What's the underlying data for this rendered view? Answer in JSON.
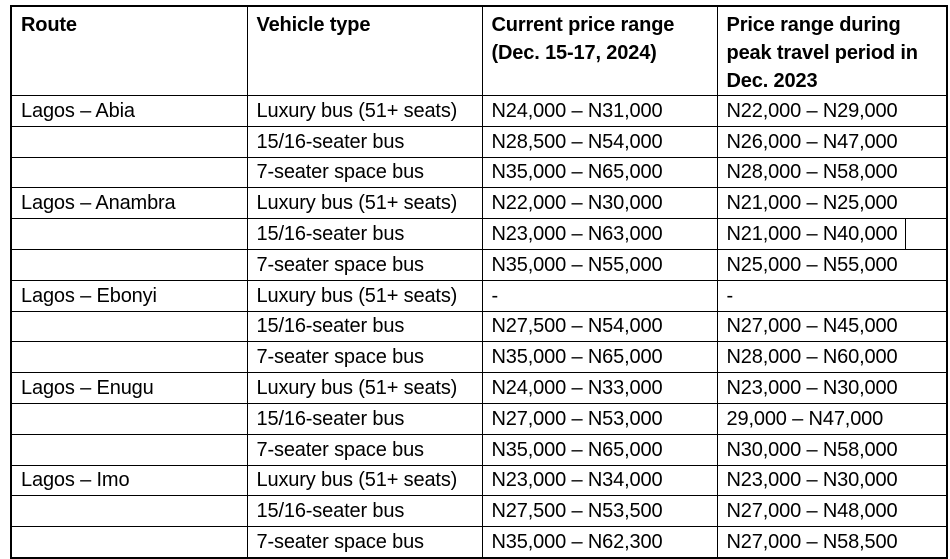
{
  "colors": {
    "background": "#ffffff",
    "border": "#000000",
    "text": "#000000"
  },
  "table": {
    "columns": [
      {
        "key": "route",
        "label": "Route"
      },
      {
        "key": "vehicle",
        "label": "Vehicle type"
      },
      {
        "key": "current",
        "label": "Current price range (Dec. 15-17, 2024)"
      },
      {
        "key": "peak",
        "label": "Price range during peak travel period in Dec. 2023"
      }
    ],
    "rows": [
      {
        "route": "Lagos – Abia",
        "vehicle": "Luxury bus (51+ seats)",
        "current": "N24,000 – N31,000",
        "peak": "N22,000 – N29,000"
      },
      {
        "route": "",
        "vehicle": "15/16-seater bus",
        "current": "N28,500 – N54,000",
        "peak": "N26,000 – N47,000"
      },
      {
        "route": "",
        "vehicle": "7-seater space bus",
        "current": "N35,000 – N65,000",
        "peak": "N28,000 – N58,000"
      },
      {
        "route": "Lagos – Anambra",
        "vehicle": "Luxury bus (51+ seats)",
        "current": "N22,000 – N30,000",
        "peak": "N21,000 – N25,000"
      },
      {
        "route": "",
        "vehicle": "15/16-seater bus",
        "current": "N23,000 – N63,000",
        "peak": "N21,000 – N40,000"
      },
      {
        "route": "",
        "vehicle": "7-seater space bus",
        "current": "N35,000 – N55,000",
        "peak": "N25,000 – N55,000"
      },
      {
        "route": "Lagos – Ebonyi",
        "vehicle": "Luxury bus (51+ seats)",
        "current": "-",
        "peak": "-"
      },
      {
        "route": "",
        "vehicle": "15/16-seater bus",
        "current": "N27,500 – N54,000",
        "peak": "N27,000 – N45,000"
      },
      {
        "route": "",
        "vehicle": "7-seater space bus",
        "current": "N35,000 – N65,000",
        "peak": "N28,000 – N60,000"
      },
      {
        "route": "Lagos – Enugu",
        "vehicle": "Luxury bus (51+ seats)",
        "current": "N24,000 – N33,000",
        "peak": "N23,000 – N30,000"
      },
      {
        "route": "",
        "vehicle": "15/16-seater bus",
        "current": "N27,000 – N53,000",
        "peak": "29,000 – N47,000"
      },
      {
        "route": "",
        "vehicle": "7-seater space bus",
        "current": "N35,000 – N65,000",
        "peak": "N30,000 – N58,000"
      },
      {
        "route": "Lagos – Imo",
        "vehicle": "Luxury bus (51+ seats)",
        "current": "N23,000 – N34,000",
        "peak": "N23,000 – N30,000"
      },
      {
        "route": "",
        "vehicle": "15/16-seater bus",
        "current": "N27,500 – N53,500",
        "peak": "N27,000 – N48,000"
      },
      {
        "route": "",
        "vehicle": "7-seater space bus",
        "current": "N35,000 – N62,300",
        "peak": "N27,000 – N58,500"
      }
    ]
  },
  "artifacts": {
    "text_cursor": {
      "row_index": 4,
      "column": "peak"
    }
  }
}
